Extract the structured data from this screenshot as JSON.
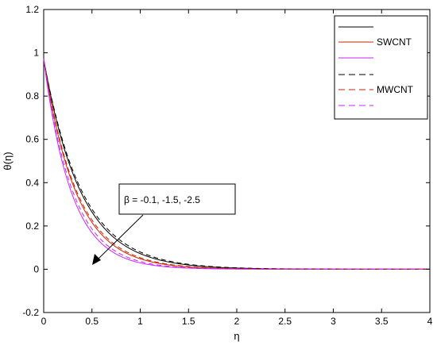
{
  "chart_data": {
    "type": "line",
    "xlabel": "η",
    "ylabel": "θ(η)",
    "xlim": [
      0,
      4
    ],
    "ylim": [
      -0.2,
      1.2
    ],
    "xticks": [
      "0",
      "0.5",
      "1",
      "1.5",
      "2",
      "2.5",
      "3",
      "3.5",
      "4"
    ],
    "yticks": [
      "-0.2",
      "0",
      "0.2",
      "0.4",
      "0.6",
      "0.8",
      "1",
      "1.2"
    ],
    "grid": false,
    "legend_position": "top-right",
    "annotation": "β = -0.1, -1.5, -2.5",
    "legend": [
      {
        "label": "",
        "color": "#000000",
        "dash": "solid"
      },
      {
        "label": "SWCNT",
        "color": "#cc2200",
        "dash": "solid"
      },
      {
        "label": "",
        "color": "#cc22ff",
        "dash": "solid"
      },
      {
        "label": "",
        "color": "#000000",
        "dash": "dashed"
      },
      {
        "label": "MWCNT",
        "color": "#cc2200",
        "dash": "dashed"
      },
      {
        "label": "",
        "color": "#cc22ff",
        "dash": "dashed"
      }
    ],
    "series": [
      {
        "color": "#000000",
        "dash": "solid",
        "decay": 2.6,
        "y0": 0.97
      },
      {
        "color": "#cc2200",
        "dash": "solid",
        "decay": 3.0,
        "y0": 0.97
      },
      {
        "color": "#cc22ff",
        "dash": "solid",
        "decay": 3.5,
        "y0": 0.97
      },
      {
        "color": "#000000",
        "dash": "dashed",
        "decay": 2.5,
        "y0": 0.97
      },
      {
        "color": "#cc2200",
        "dash": "dashed",
        "decay": 2.9,
        "y0": 0.97
      },
      {
        "color": "#cc22ff",
        "dash": "dashed",
        "decay": 3.3,
        "y0": 0.97
      }
    ]
  }
}
